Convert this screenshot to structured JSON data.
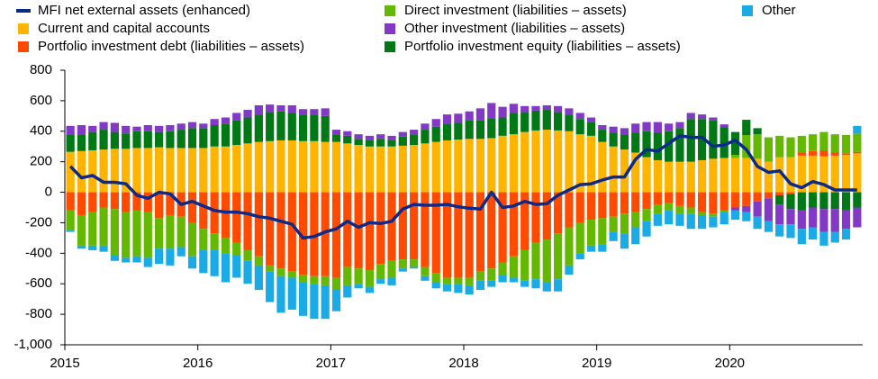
{
  "chart_data": {
    "type": "bar",
    "categories": [
      "2015",
      null,
      null,
      null,
      null,
      null,
      null,
      null,
      null,
      null,
      null,
      null,
      "2016",
      null,
      null,
      null,
      null,
      null,
      null,
      null,
      null,
      null,
      null,
      null,
      "2017",
      null,
      null,
      null,
      null,
      null,
      null,
      null,
      null,
      null,
      null,
      null,
      "2018",
      null,
      null,
      null,
      null,
      null,
      null,
      null,
      null,
      null,
      null,
      null,
      "2019",
      null,
      null,
      null,
      null,
      null,
      null,
      null,
      null,
      null,
      null,
      null,
      "2020",
      null,
      null,
      null,
      null,
      null,
      null,
      null,
      null,
      null,
      null,
      null
    ],
    "ylim": [
      -1000,
      800
    ],
    "yticks": [
      {
        "value": -1000,
        "label": "-1,000"
      },
      -800,
      -600,
      -400,
      -200,
      0,
      200,
      400,
      600,
      800
    ],
    "line": {
      "name": "MFI net external assets (enhanced)",
      "color": "#0c2a8a",
      "values": [
        170,
        95,
        110,
        65,
        65,
        55,
        -20,
        -40,
        0,
        -10,
        -80,
        -60,
        -90,
        -120,
        -130,
        -130,
        -140,
        -160,
        -170,
        -190,
        -210,
        -300,
        -290,
        -260,
        -240,
        -190,
        -230,
        -200,
        -205,
        -190,
        -110,
        -80,
        -85,
        -85,
        -80,
        -95,
        -105,
        -110,
        0,
        -100,
        -90,
        -60,
        -80,
        -75,
        -20,
        15,
        50,
        55,
        80,
        100,
        100,
        215,
        280,
        270,
        320,
        370,
        360,
        360,
        300,
        310,
        340,
        280,
        170,
        130,
        140,
        55,
        30,
        70,
        50,
        15,
        15,
        15
      ]
    },
    "series": [
      {
        "name": "Current and capital accounts",
        "color": "#ffb400",
        "values": [
          265,
          270,
          275,
          280,
          285,
          285,
          290,
          290,
          295,
          290,
          290,
          290,
          290,
          300,
          300,
          310,
          320,
          330,
          335,
          340,
          340,
          335,
          335,
          330,
          330,
          320,
          310,
          300,
          300,
          300,
          305,
          310,
          320,
          330,
          340,
          345,
          350,
          350,
          355,
          370,
          380,
          395,
          405,
          410,
          405,
          400,
          380,
          370,
          330,
          300,
          280,
          260,
          230,
          210,
          200,
          200,
          200,
          210,
          220,
          225,
          225,
          225,
          220,
          200,
          230,
          230,
          240,
          240,
          235,
          240,
          245,
          255
        ]
      },
      {
        "name": "Portfolio investment  debt (liabilities – assets)",
        "color": "#ff4b00",
        "values": [
          -120,
          -150,
          -130,
          -100,
          -110,
          -130,
          -120,
          -130,
          -170,
          -150,
          -160,
          -200,
          -240,
          -270,
          -300,
          -330,
          -380,
          -420,
          -480,
          -500,
          -520,
          -540,
          -550,
          -550,
          -560,
          -490,
          -500,
          -510,
          -470,
          -450,
          -440,
          -440,
          -490,
          -530,
          -560,
          -560,
          -560,
          -520,
          -500,
          -460,
          -420,
          -380,
          -330,
          -310,
          -270,
          -230,
          -200,
          -180,
          -170,
          -160,
          -140,
          -130,
          -110,
          -80,
          -70,
          -90,
          -100,
          -130,
          -140,
          -120,
          -100,
          -90,
          -60,
          -40,
          -20,
          -10,
          20,
          30,
          40,
          20,
          10,
          10
        ]
      },
      {
        "name": "Direct investment  (liabilities – assets)",
        "color": "#65b800",
        "values": [
          -130,
          -200,
          -220,
          -250,
          -300,
          -300,
          -300,
          -300,
          -200,
          -220,
          -200,
          -220,
          -140,
          -110,
          -100,
          -80,
          -70,
          -60,
          -40,
          -50,
          -40,
          -50,
          -50,
          -60,
          -80,
          -120,
          -100,
          -110,
          -100,
          -110,
          -60,
          -50,
          -60,
          -60,
          -40,
          -40,
          -50,
          -60,
          -80,
          -80,
          -140,
          -200,
          -240,
          -280,
          -300,
          -250,
          -200,
          -170,
          -170,
          -100,
          -130,
          -100,
          -80,
          -60,
          -50,
          -50,
          -40,
          -20,
          -20,
          -10,
          20,
          150,
          160,
          160,
          140,
          130,
          110,
          110,
          120,
          120,
          120,
          120
        ]
      },
      {
        "name": "Portfolio investment equity (liabilities – assets)",
        "color": "#007816",
        "values": [
          110,
          110,
          120,
          130,
          110,
          100,
          110,
          110,
          100,
          110,
          120,
          130,
          130,
          140,
          150,
          160,
          170,
          180,
          190,
          190,
          180,
          170,
          170,
          170,
          50,
          50,
          40,
          40,
          50,
          40,
          60,
          70,
          90,
          100,
          110,
          110,
          120,
          120,
          130,
          120,
          140,
          130,
          130,
          130,
          120,
          110,
          100,
          90,
          80,
          90,
          100,
          130,
          170,
          180,
          200,
          220,
          280,
          270,
          250,
          200,
          150,
          100,
          40,
          0,
          -60,
          -100,
          -120,
          -100,
          -110,
          -110,
          -120,
          -100
        ]
      },
      {
        "name": "Other investment  (liabilities – assets)",
        "color": "#8139c6",
        "values": [
          60,
          60,
          40,
          50,
          60,
          50,
          30,
          40,
          40,
          40,
          40,
          40,
          30,
          40,
          40,
          50,
          50,
          60,
          50,
          40,
          50,
          40,
          40,
          50,
          30,
          30,
          30,
          30,
          30,
          30,
          30,
          30,
          40,
          50,
          60,
          60,
          60,
          80,
          100,
          70,
          60,
          40,
          30,
          30,
          40,
          40,
          40,
          30,
          30,
          40,
          40,
          60,
          60,
          70,
          50,
          40,
          40,
          30,
          20,
          20,
          -20,
          -40,
          -100,
          -150,
          -130,
          -100,
          -120,
          -130,
          -150,
          -150,
          -120,
          -130
        ]
      },
      {
        "name": "Other",
        "color": "#1aaae6",
        "values": [
          -10,
          -20,
          -30,
          -40,
          -40,
          -30,
          -40,
          -60,
          -100,
          -110,
          -60,
          -80,
          -150,
          -170,
          -190,
          -150,
          -150,
          -160,
          -200,
          -240,
          -210,
          -220,
          -230,
          -220,
          -140,
          -80,
          -30,
          -40,
          -30,
          -50,
          -20,
          -10,
          -30,
          -40,
          -50,
          -60,
          -60,
          -60,
          -40,
          -50,
          -30,
          -40,
          -60,
          -60,
          -80,
          -60,
          -40,
          -40,
          -50,
          -60,
          -100,
          -110,
          -100,
          -80,
          -90,
          -80,
          -100,
          -90,
          -70,
          -80,
          -60,
          -60,
          -80,
          -70,
          -80,
          -90,
          -100,
          -80,
          -90,
          -70,
          -70,
          50
        ]
      }
    ]
  }
}
